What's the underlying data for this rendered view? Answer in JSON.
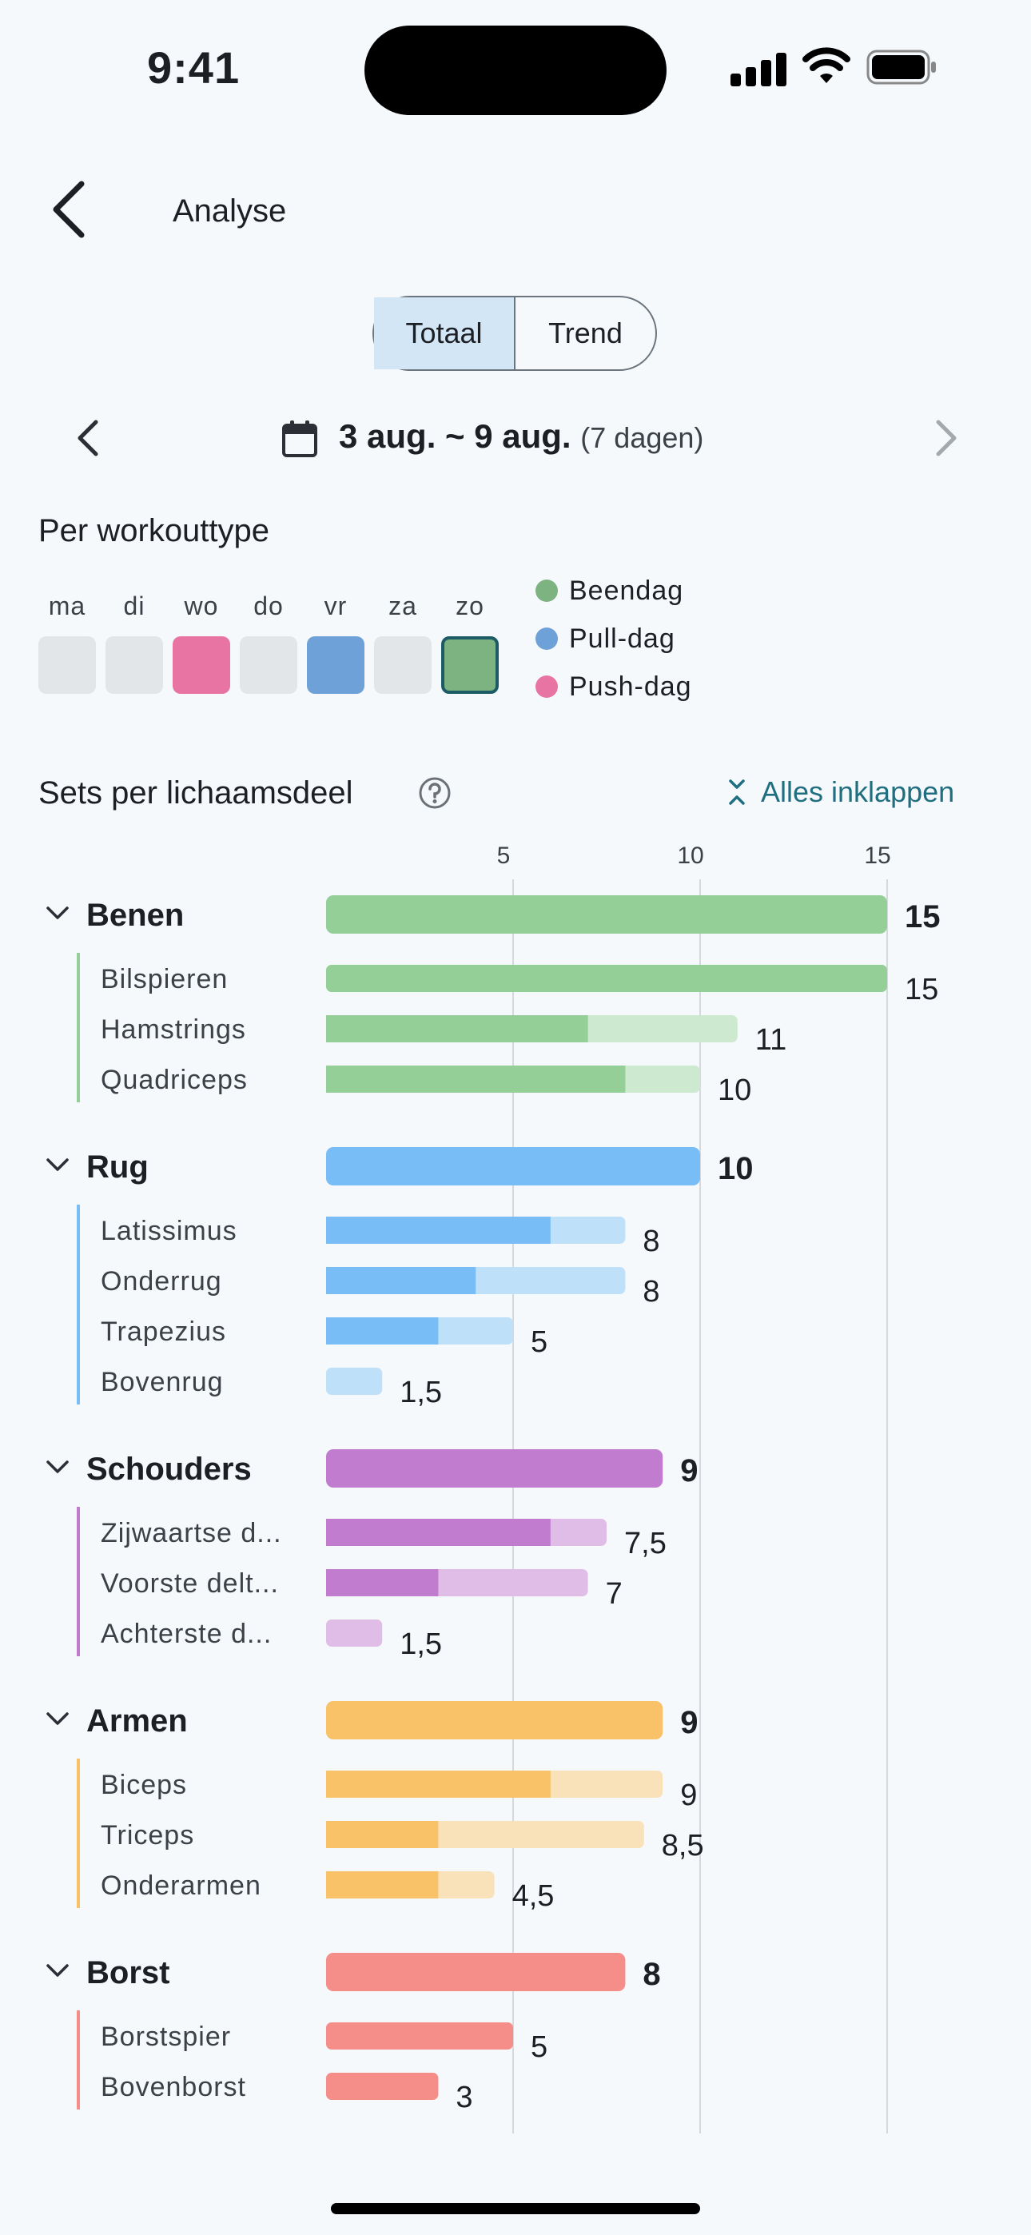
{
  "status": {
    "time": "9:41"
  },
  "header": {
    "title": "Analyse"
  },
  "segments": [
    {
      "label": "Totaal",
      "active": true
    },
    {
      "label": "Trend",
      "active": false
    }
  ],
  "date_nav": {
    "range": "3 aug. ~ 9 aug.",
    "sub": "(7 dagen)"
  },
  "workout_type": {
    "title": "Per workouttype",
    "days": [
      {
        "label": "ma",
        "type": null
      },
      {
        "label": "di",
        "type": null
      },
      {
        "label": "wo",
        "type": "push"
      },
      {
        "label": "do",
        "type": null
      },
      {
        "label": "vr",
        "type": "pull"
      },
      {
        "label": "za",
        "type": null
      },
      {
        "label": "zo",
        "type": "been",
        "selected": true
      }
    ],
    "legend": [
      {
        "key": "been",
        "label": "Beendag",
        "color": "#7db380"
      },
      {
        "key": "pull",
        "label": "Pull-dag",
        "color": "#6fa1d9"
      },
      {
        "key": "push",
        "label": "Push-dag",
        "color": "#e874a3"
      }
    ],
    "empty_color": "#e3e6e9"
  },
  "sets_section": {
    "title": "Sets per lichaamsdeel",
    "collapse_label": "Alles inklappen"
  },
  "chart_data": {
    "type": "bar",
    "orientation": "horizontal",
    "x_ticks": [
      5,
      10,
      15
    ],
    "xlim": [
      0,
      16
    ],
    "groups": [
      {
        "name": "Benen",
        "value": 15,
        "display": "15",
        "color": "#93cf96",
        "light": "#cde9cf",
        "items": [
          {
            "name": "Bilspieren",
            "value": 15,
            "solid": 15,
            "display": "15"
          },
          {
            "name": "Hamstrings",
            "value": 11,
            "solid": 7,
            "display": "11"
          },
          {
            "name": "Quadriceps",
            "value": 10,
            "solid": 8,
            "display": "10"
          }
        ]
      },
      {
        "name": "Rug",
        "value": 10,
        "display": "10",
        "color": "#78bdf5",
        "light": "#bee0f8",
        "items": [
          {
            "name": "Latissimus",
            "value": 8,
            "solid": 6,
            "display": "8"
          },
          {
            "name": "Onderrug",
            "value": 8,
            "solid": 4,
            "display": "8"
          },
          {
            "name": "Trapezius",
            "value": 5,
            "solid": 3,
            "display": "5"
          },
          {
            "name": "Bovenrug",
            "value": 1.5,
            "solid": 0,
            "display": "1,5"
          }
        ]
      },
      {
        "name": "Schouders",
        "value": 9,
        "display": "9",
        "color": "#c17ccf",
        "light": "#dfbde6",
        "items": [
          {
            "name": "Zijwaartse d...",
            "value": 7.5,
            "solid": 6,
            "display": "7,5"
          },
          {
            "name": "Voorste delt...",
            "value": 7,
            "solid": 3,
            "display": "7"
          },
          {
            "name": "Achterste d...",
            "value": 1.5,
            "solid": 0,
            "display": "1,5"
          }
        ]
      },
      {
        "name": "Armen",
        "value": 9,
        "display": "9",
        "color": "#f9c168",
        "light": "#f9e1b9",
        "items": [
          {
            "name": "Biceps",
            "value": 9,
            "solid": 6,
            "display": "9"
          },
          {
            "name": "Triceps",
            "value": 8.5,
            "solid": 3,
            "display": "8,5"
          },
          {
            "name": "Onderarmen",
            "value": 4.5,
            "solid": 3,
            "display": "4,5"
          }
        ]
      },
      {
        "name": "Borst",
        "value": 8,
        "display": "8",
        "color": "#f58d88",
        "light": "#fac8c4",
        "items": [
          {
            "name": "Borstspier",
            "value": 5,
            "solid": 5,
            "display": "5"
          },
          {
            "name": "Bovenborst",
            "value": 3,
            "solid": 3,
            "display": "3"
          }
        ]
      }
    ]
  }
}
